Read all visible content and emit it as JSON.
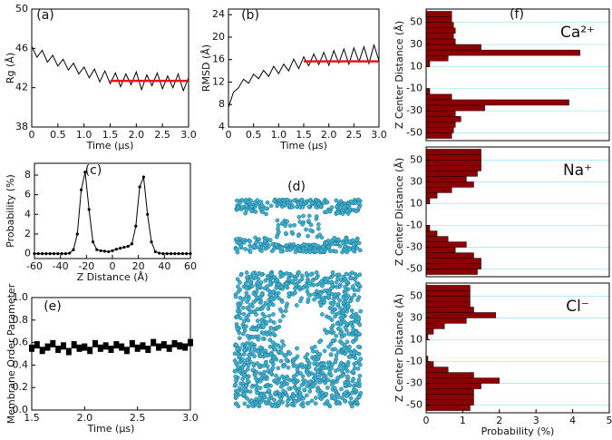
{
  "chart_data": [
    {
      "type": "line",
      "panel_label": "(a)",
      "xlabel": "Time (μs)",
      "ylabel": "Rg (Å)",
      "xlim": [
        0,
        3
      ],
      "ylim": [
        38,
        50
      ],
      "xticks": [
        0,
        0.5,
        {
          "value": 1,
          "label": "1.0"
        },
        1.5,
        {
          "value": 2,
          "label": "2.0"
        },
        2.5,
        {
          "value": 3,
          "label": "3.0"
        }
      ],
      "yticks": [
        38,
        42,
        46,
        50
      ],
      "series": [
        {
          "color": "#000000",
          "x": [
            0,
            0.1,
            0.2,
            0.3,
            0.4,
            0.5,
            0.6,
            0.7,
            0.8,
            0.9,
            1,
            1.1,
            1.2,
            1.3,
            1.4,
            1.5,
            1.6,
            1.7,
            1.8,
            1.9,
            2,
            2.1,
            2.2,
            2.3,
            2.4,
            2.5,
            2.6,
            2.7,
            2.8,
            2.9,
            3
          ],
          "values": [
            46.2,
            45.1,
            45.8,
            44.6,
            45.3,
            44.2,
            44.9,
            43.8,
            44.5,
            43.4,
            44.1,
            43.0,
            43.9,
            42.6,
            43.7,
            42.4,
            43.5,
            42.1,
            43.4,
            42.3,
            43.6,
            41.8,
            43.3,
            42.2,
            43.5,
            41.9,
            43.2,
            42.0,
            43.4,
            41.7,
            43.0
          ]
        },
        {
          "color": "#e8161b",
          "x": [
            1.5,
            3
          ],
          "values": [
            42.7,
            42.7
          ]
        }
      ]
    },
    {
      "type": "line",
      "panel_label": "(b)",
      "xlabel": "Time (μs)",
      "ylabel": "RMSD (Å)",
      "xlim": [
        0,
        3
      ],
      "ylim": [
        4,
        25
      ],
      "xticks": [
        0,
        0.5,
        {
          "value": 1,
          "label": "1.0"
        },
        1.5,
        {
          "value": 2,
          "label": "2.0"
        },
        2.5,
        {
          "value": 3,
          "label": "3.0"
        }
      ],
      "yticks": [
        4,
        8,
        12,
        16,
        20,
        24
      ],
      "series": [
        {
          "color": "#000000",
          "x": [
            0,
            0.1,
            0.2,
            0.3,
            0.4,
            0.5,
            0.6,
            0.7,
            0.8,
            0.9,
            1,
            1.1,
            1.2,
            1.3,
            1.4,
            1.5,
            1.6,
            1.7,
            1.8,
            1.9,
            2,
            2.1,
            2.2,
            2.3,
            2.4,
            2.5,
            2.6,
            2.7,
            2.8,
            2.9,
            3
          ],
          "values": [
            7.5,
            10.2,
            11.0,
            12.5,
            11.8,
            13.4,
            12.6,
            14.1,
            13.0,
            14.8,
            13.5,
            15.2,
            14.0,
            16.1,
            14.4,
            16.5,
            14.9,
            17.0,
            15.1,
            17.3,
            15.0,
            17.6,
            15.4,
            17.9,
            15.2,
            18.1,
            15.6,
            18.3,
            15.3,
            18.6,
            15.8
          ]
        },
        {
          "color": "#e8161b",
          "x": [
            1.5,
            3
          ],
          "values": [
            15.7,
            15.7
          ]
        }
      ]
    },
    {
      "type": "line",
      "panel_label": "(c)",
      "xlabel": "Z Distance (Å)",
      "ylabel": "Probability (%)",
      "marker": true,
      "xlim": [
        -60,
        60
      ],
      "ylim": [
        -0.5,
        9.2
      ],
      "xticks": [
        -60,
        -40,
        -20,
        0,
        20,
        40,
        60
      ],
      "yticks": [
        0,
        2,
        4,
        6,
        8
      ],
      "series": [
        {
          "color": "#000000",
          "x": [
            -60,
            -57,
            -54,
            -51,
            -48,
            -45,
            -42,
            -39,
            -36,
            -33,
            -30,
            -27,
            -24,
            -21,
            -18,
            -15,
            -12,
            -9,
            -6,
            -3,
            0,
            3,
            6,
            9,
            12,
            15,
            18,
            21,
            24,
            27,
            30,
            33,
            36,
            39,
            42,
            45,
            48,
            51,
            54,
            57,
            60
          ],
          "values": [
            0,
            0,
            0,
            0,
            0,
            0,
            0,
            0,
            0,
            0.05,
            0.4,
            2.0,
            6.5,
            8.3,
            4.5,
            1.2,
            0.4,
            0.3,
            0.25,
            0.2,
            0.3,
            0.45,
            0.55,
            0.65,
            0.75,
            1.0,
            2.8,
            6.8,
            7.8,
            4.0,
            1.2,
            0.2,
            0.05,
            0,
            0,
            0,
            0,
            0,
            0,
            0,
            0
          ]
        }
      ]
    },
    {
      "type": "image",
      "panel_label": "(d)"
    },
    {
      "type": "scatter",
      "panel_label": "(e)",
      "xlabel": "Time (μs)",
      "ylabel": "Membrane Order Parameter",
      "xlim": [
        1.5,
        3
      ],
      "ylim": [
        0,
        1
      ],
      "xticks": [
        1.5,
        {
          "value": 2,
          "label": "2.0"
        },
        2.5,
        {
          "value": 3,
          "label": "3.0"
        }
      ],
      "yticks": [
        {
          "value": 0,
          "label": "0.0"
        },
        0.2,
        0.4,
        0.6,
        0.8,
        {
          "value": 1,
          "label": "1.0"
        }
      ],
      "series": [
        {
          "color": "#000000",
          "x": [
            1.5,
            1.55,
            1.6,
            1.65,
            1.7,
            1.75,
            1.8,
            1.85,
            1.9,
            1.95,
            2,
            2.05,
            2.1,
            2.15,
            2.2,
            2.25,
            2.3,
            2.35,
            2.4,
            2.45,
            2.5,
            2.55,
            2.6,
            2.65,
            2.7,
            2.75,
            2.8,
            2.85,
            2.9,
            2.95,
            3
          ],
          "values": [
            0.55,
            0.58,
            0.53,
            0.56,
            0.59,
            0.54,
            0.57,
            0.52,
            0.58,
            0.55,
            0.56,
            0.53,
            0.59,
            0.55,
            0.57,
            0.54,
            0.58,
            0.56,
            0.53,
            0.59,
            0.55,
            0.57,
            0.54,
            0.6,
            0.56,
            0.58,
            0.55,
            0.59,
            0.57,
            0.56,
            0.6
          ]
        }
      ]
    },
    {
      "type": "histogram",
      "orientation": "horizontal",
      "panel_label": "(f)",
      "annotation": "Ca²⁺",
      "ylabel": "Z Center Distance (Å)",
      "grid": true,
      "grid_color": "#a8e4f3",
      "color": "#8b0000",
      "xlim": [
        0,
        5
      ],
      "ylim": [
        -57,
        62
      ],
      "yticks": [
        -50,
        -30,
        -10,
        10,
        30,
        50
      ],
      "bins": [
        -55,
        -50,
        -45,
        -40,
        -35,
        -30,
        -25,
        -20,
        -15,
        -10,
        -5,
        0,
        5,
        10,
        15,
        20,
        25,
        30,
        35,
        40,
        45,
        50,
        55,
        60
      ],
      "values": [
        0.7,
        0.75,
        0.8,
        0.95,
        0.8,
        1.6,
        3.9,
        0.7,
        0.1,
        0,
        0,
        0,
        0,
        0.1,
        0.6,
        4.2,
        1.5,
        0.8,
        0.75,
        0.8,
        0.75,
        0.7,
        0.7
      ]
    },
    {
      "type": "histogram",
      "orientation": "horizontal",
      "annotation": "Na⁺",
      "ylabel": "Z Center Distance (Å)",
      "grid": true,
      "grid_color": "#a8e4f3",
      "color": "#8b0000",
      "xlim": [
        0,
        5
      ],
      "ylim": [
        -57,
        62
      ],
      "yticks": [
        -50,
        -30,
        -10,
        10,
        30,
        50
      ],
      "bins": [
        -55,
        -50,
        -45,
        -40,
        -35,
        -30,
        -25,
        -20,
        -15,
        -10,
        -5,
        0,
        5,
        10,
        15,
        20,
        25,
        30,
        35,
        40,
        45,
        50,
        55,
        60
      ],
      "values": [
        1.4,
        1.5,
        1.5,
        1.3,
        0.8,
        1.1,
        0.6,
        0.3,
        0.1,
        0,
        0,
        0,
        0,
        0.1,
        0.3,
        0.7,
        1.3,
        1.1,
        1.4,
        1.5,
        1.5,
        1.5,
        1.5
      ]
    },
    {
      "type": "histogram",
      "orientation": "horizontal",
      "annotation": "Cl⁻",
      "ylabel": "Z Center Distance (Å)",
      "xlabel": "Probability (%)",
      "grid": true,
      "grid_color": "#a8e4f3",
      "color": "#8b0000",
      "xlim": [
        0,
        5
      ],
      "ylim": [
        -57,
        62
      ],
      "yticks": [
        -50,
        -30,
        -10,
        10,
        30,
        50
      ],
      "xticks": [
        0,
        1,
        2,
        3,
        4,
        5
      ],
      "bins": [
        -55,
        -50,
        -45,
        -40,
        -35,
        -30,
        -25,
        -20,
        -15,
        -10,
        -5,
        0,
        5,
        10,
        15,
        20,
        25,
        30,
        35,
        40,
        45,
        50,
        55,
        60
      ],
      "values": [
        1.2,
        1.3,
        1.3,
        1.3,
        1.5,
        2.0,
        1.3,
        0.6,
        0.2,
        0.05,
        0,
        0,
        0,
        0.05,
        0.2,
        0.5,
        1.1,
        1.9,
        1.3,
        1.2,
        1.2,
        1.2,
        1.2
      ]
    }
  ]
}
